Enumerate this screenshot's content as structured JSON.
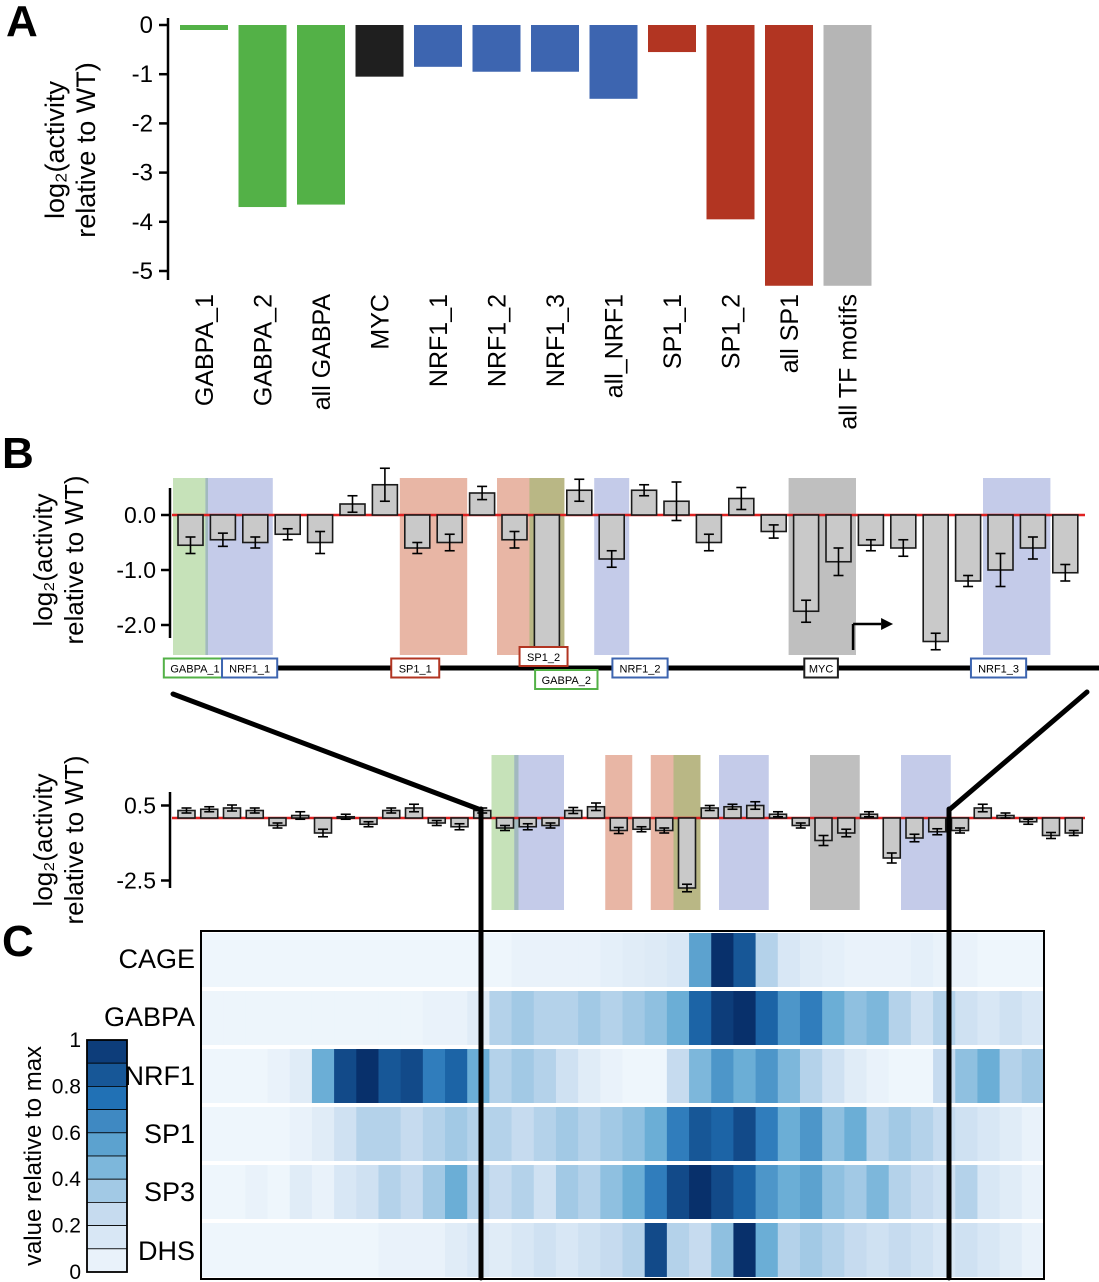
{
  "panels": {
    "a": "A",
    "b": "B",
    "c": "C"
  },
  "colors": {
    "green": "#53b147",
    "blue": "#3d65b0",
    "red": "#b23522",
    "black": "#1f1f1f",
    "gray": "#b5b5b5",
    "bar_fill": "#c9c9c9",
    "bar_stroke": "#1a1a1a",
    "zero_line": "#e02121",
    "hl_green": "rgba(118,185,88,0.42)",
    "hl_blue": "rgba(108,124,199,0.40)",
    "hl_red": "rgba(204,94,56,0.45)",
    "hl_gray": "rgba(122,122,122,0.48)",
    "heatmap_low": "#f2f8fd",
    "heatmap_high": "#08306b"
  },
  "chart_data": [
    {
      "id": "panel-A",
      "type": "bar",
      "ylabel_lines": [
        "log₂(activity",
        "relative to WT)"
      ],
      "ylim": [
        -5.5,
        0
      ],
      "yticks": [
        0,
        -1,
        -2,
        -3,
        -4,
        -5
      ],
      "categories": [
        "GABPA_1",
        "GABPA_2",
        "all GABPA",
        "MYC",
        "NRF1_1",
        "NRF1_2",
        "NRF1_3",
        "all_NRF1",
        "SP1_1",
        "SP1_2",
        "all SP1",
        "all TF motifs"
      ],
      "values": [
        -0.06,
        -3.7,
        -3.65,
        -1.05,
        -0.85,
        -0.95,
        -0.95,
        -1.5,
        -0.55,
        -3.95,
        -5.3,
        -5.3
      ],
      "groups": [
        "green",
        "green",
        "green",
        "black",
        "blue",
        "blue",
        "blue",
        "blue",
        "red",
        "red",
        "red",
        "gray"
      ]
    },
    {
      "id": "panel-B-zoom",
      "type": "bar",
      "ylabel_lines": [
        "log₂(activity",
        "relative to WT)"
      ],
      "yticks": [
        {
          "v": 0,
          "label": "0.0"
        },
        {
          "v": -1,
          "label": "-1.0"
        },
        {
          "v": -2,
          "label": "-2.0"
        }
      ],
      "values": [
        -0.55,
        -0.45,
        -0.5,
        -0.35,
        -0.5,
        0.2,
        0.55,
        -0.6,
        -0.5,
        0.4,
        -0.45,
        -2.6,
        0.45,
        -0.8,
        0.45,
        0.25,
        -0.5,
        0.3,
        -0.3,
        -1.75,
        -0.85,
        -0.55,
        -0.6,
        -2.3,
        -1.2,
        -1.0,
        -0.6,
        -1.05
      ],
      "errors": [
        0.15,
        0.12,
        0.1,
        0.1,
        0.2,
        0.15,
        0.3,
        0.1,
        0.15,
        0.12,
        0.15,
        0.1,
        0.2,
        0.15,
        0.1,
        0.35,
        0.15,
        0.2,
        0.12,
        0.2,
        0.25,
        0.1,
        0.15,
        0.15,
        0.1,
        0.3,
        0.2,
        0.15
      ],
      "highlights": [
        {
          "start": 0,
          "end": 0,
          "color": "green"
        },
        {
          "start": 1,
          "end": 2,
          "color": "blue"
        },
        {
          "start": 7,
          "end": 8,
          "color": "red"
        },
        {
          "start": 10,
          "end": 11,
          "color": "red"
        },
        {
          "start": 11,
          "end": 11,
          "color": "green"
        },
        {
          "start": 13,
          "end": 13,
          "color": "blue"
        },
        {
          "start": 19,
          "end": 20,
          "color": "gray"
        },
        {
          "start": 25,
          "end": 26,
          "color": "blue"
        }
      ],
      "track": {
        "items": [
          {
            "label": "GABPA_1",
            "color": "green",
            "pos": 0.022,
            "row": "center"
          },
          {
            "label": "NRF1_1",
            "color": "blue",
            "pos": 0.082,
            "row": "center"
          },
          {
            "label": "SP1_1",
            "color": "red",
            "pos": 0.264,
            "row": "center"
          },
          {
            "label": "SP1_2",
            "color": "red",
            "pos": 0.405,
            "row": "above"
          },
          {
            "label": "GABPA_2",
            "color": "green",
            "pos": 0.43,
            "row": "below"
          },
          {
            "label": "NRF1_2",
            "color": "blue",
            "pos": 0.511,
            "row": "center"
          },
          {
            "label": "MYC",
            "color": "black",
            "pos": 0.71,
            "row": "center",
            "tss_arrow": true
          },
          {
            "label": "NRF1_3",
            "color": "blue",
            "pos": 0.905,
            "row": "center"
          }
        ]
      }
    },
    {
      "id": "panel-B-wide",
      "type": "bar",
      "ylabel_lines": [
        "log₂(activity",
        "relative to WT)"
      ],
      "yticks": [
        {
          "v": 0.5,
          "label": "0.5"
        },
        {
          "v": -2.5,
          "label": "-2.5"
        }
      ],
      "values": [
        0.3,
        0.35,
        0.4,
        0.3,
        -0.3,
        0.1,
        -0.6,
        0.05,
        -0.25,
        0.3,
        0.4,
        -0.2,
        -0.35,
        0.3,
        -0.4,
        -0.35,
        -0.3,
        0.3,
        0.45,
        -0.5,
        -0.45,
        -0.5,
        -2.8,
        0.4,
        0.45,
        0.5,
        0.15,
        -0.3,
        -0.9,
        -0.6,
        0.15,
        -1.6,
        -0.8,
        -0.55,
        -0.5,
        0.4,
        0.1,
        -0.15,
        -0.7,
        -0.6
      ],
      "errors": [
        0.1,
        0.1,
        0.12,
        0.1,
        0.1,
        0.15,
        0.15,
        0.1,
        0.1,
        0.1,
        0.15,
        0.1,
        0.12,
        0.1,
        0.1,
        0.12,
        0.1,
        0.12,
        0.15,
        0.12,
        0.1,
        0.1,
        0.15,
        0.1,
        0.1,
        0.15,
        0.1,
        0.1,
        0.2,
        0.15,
        0.1,
        0.2,
        0.15,
        0.12,
        0.1,
        0.15,
        0.1,
        0.1,
        0.12,
        0.1
      ],
      "highlights": [
        {
          "start": 14,
          "end": 14,
          "color": "green"
        },
        {
          "start": 15,
          "end": 16,
          "color": "blue"
        },
        {
          "start": 19,
          "end": 19,
          "color": "red"
        },
        {
          "start": 21,
          "end": 22,
          "color": "red"
        },
        {
          "start": 22,
          "end": 22,
          "color": "green"
        },
        {
          "start": 24,
          "end": 25,
          "color": "blue"
        },
        {
          "start": 28,
          "end": 29,
          "color": "gray"
        },
        {
          "start": 32,
          "end": 33,
          "color": "blue"
        }
      ]
    },
    {
      "id": "panel-C",
      "type": "heatmap",
      "rows": [
        "CAGE",
        "GABPA",
        "NRF1",
        "SP1",
        "SP3",
        "DHS"
      ],
      "colorbar": {
        "label": "value relative to max",
        "ticks": [
          1,
          0.8,
          0.6,
          0.4,
          0.2,
          0
        ]
      },
      "values": [
        [
          0.02,
          0.02,
          0.02,
          0.02,
          0.02,
          0.02,
          0.02,
          0.02,
          0.02,
          0.02,
          0.02,
          0.02,
          0.02,
          0.02,
          0.05,
          0.05,
          0.05,
          0.05,
          0.08,
          0.1,
          0.12,
          0.15,
          0.55,
          1.0,
          0.85,
          0.3,
          0.15,
          0.1,
          0.08,
          0.05,
          0.05,
          0.05,
          0.08,
          0.05,
          0.05,
          0.02,
          0.02,
          0.02
        ],
        [
          0.03,
          0.03,
          0.03,
          0.03,
          0.03,
          0.03,
          0.03,
          0.03,
          0.03,
          0.03,
          0.05,
          0.05,
          0.1,
          0.3,
          0.35,
          0.3,
          0.3,
          0.35,
          0.3,
          0.35,
          0.4,
          0.5,
          0.8,
          0.95,
          1.0,
          0.8,
          0.6,
          0.7,
          0.5,
          0.4,
          0.45,
          0.3,
          0.2,
          0.3,
          0.2,
          0.15,
          0.2,
          0.15
        ],
        [
          0.02,
          0.02,
          0.02,
          0.05,
          0.1,
          0.5,
          0.9,
          1.0,
          0.85,
          0.9,
          0.7,
          0.8,
          0.5,
          0.3,
          0.35,
          0.3,
          0.2,
          0.1,
          0.05,
          0.02,
          0.02,
          0.25,
          0.45,
          0.6,
          0.5,
          0.6,
          0.45,
          0.3,
          0.2,
          0.1,
          0.05,
          0.02,
          0.02,
          0.25,
          0.4,
          0.5,
          0.3,
          0.35
        ],
        [
          0.02,
          0.02,
          0.02,
          0.02,
          0.05,
          0.1,
          0.2,
          0.3,
          0.3,
          0.25,
          0.3,
          0.35,
          0.3,
          0.3,
          0.25,
          0.3,
          0.35,
          0.3,
          0.35,
          0.4,
          0.5,
          0.7,
          0.85,
          0.8,
          0.9,
          0.7,
          0.5,
          0.6,
          0.4,
          0.5,
          0.3,
          0.35,
          0.3,
          0.25,
          0.2,
          0.15,
          0.1,
          0.05
        ],
        [
          0.02,
          0.02,
          0.05,
          0.02,
          0.1,
          0.05,
          0.15,
          0.2,
          0.3,
          0.25,
          0.35,
          0.5,
          0.3,
          0.25,
          0.3,
          0.2,
          0.35,
          0.3,
          0.4,
          0.5,
          0.7,
          0.9,
          1.0,
          0.9,
          0.8,
          0.6,
          0.5,
          0.55,
          0.4,
          0.35,
          0.45,
          0.3,
          0.25,
          0.2,
          0.3,
          0.15,
          0.1,
          0.05
        ],
        [
          0.02,
          0.02,
          0.02,
          0.02,
          0.02,
          0.02,
          0.02,
          0.02,
          0.05,
          0.05,
          0.05,
          0.1,
          0.15,
          0.1,
          0.15,
          0.2,
          0.15,
          0.2,
          0.25,
          0.3,
          0.9,
          0.3,
          0.25,
          0.4,
          1.0,
          0.5,
          0.3,
          0.35,
          0.3,
          0.25,
          0.2,
          0.25,
          0.2,
          0.15,
          0.2,
          0.15,
          0.1,
          0.05
        ]
      ]
    }
  ]
}
